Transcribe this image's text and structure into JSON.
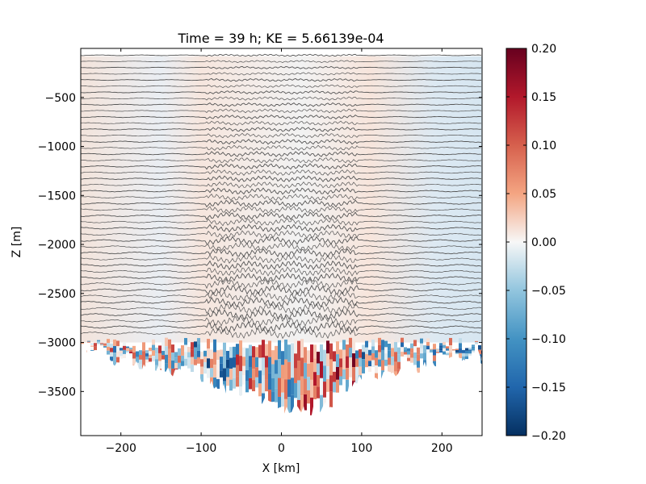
{
  "chart_data": {
    "type": "heatmap",
    "title": "Time = 39 h; KE = 5.66139e-04",
    "xlabel": "X [km]",
    "ylabel": "Z [m]",
    "xlim": [
      -250,
      250
    ],
    "ylim": [
      -3950,
      0
    ],
    "x_ticks": [
      -200,
      -100,
      0,
      100,
      200
    ],
    "x_tick_labels": [
      "−200",
      "−100",
      "0",
      "100",
      "200"
    ],
    "y_ticks": [
      -500,
      -1000,
      -1500,
      -2000,
      -2500,
      -3000,
      -3500
    ],
    "y_tick_labels": [
      "−500",
      "−1000",
      "−1500",
      "−2000",
      "−2500",
      "−3000",
      "−3500"
    ],
    "colorbar": {
      "vmin": -0.2,
      "vmax": 0.2,
      "colormap": "RdBu_r",
      "ticks": [
        0.2,
        0.15,
        0.1,
        0.05,
        0.0,
        -0.05,
        -0.1,
        -0.15,
        -0.2
      ],
      "tick_labels": [
        "0.20",
        "0.15",
        "0.10",
        "0.05",
        "0.00",
        "−0.05",
        "−0.10",
        "−0.15",
        "−0.20"
      ]
    },
    "contour_color": "#555555",
    "bottom_topography_approx": [
      {
        "x": -250,
        "z": -3050
      },
      {
        "x": -200,
        "z": -3200
      },
      {
        "x": -150,
        "z": -3250
      },
      {
        "x": -100,
        "z": -3350
      },
      {
        "x": -50,
        "z": -3550
      },
      {
        "x": 0,
        "z": -3650
      },
      {
        "x": 40,
        "z": -3700
      },
      {
        "x": 100,
        "z": -3350
      },
      {
        "x": 150,
        "z": -3250
      },
      {
        "x": 200,
        "z": -3200
      },
      {
        "x": 250,
        "z": -3100
      }
    ]
  }
}
